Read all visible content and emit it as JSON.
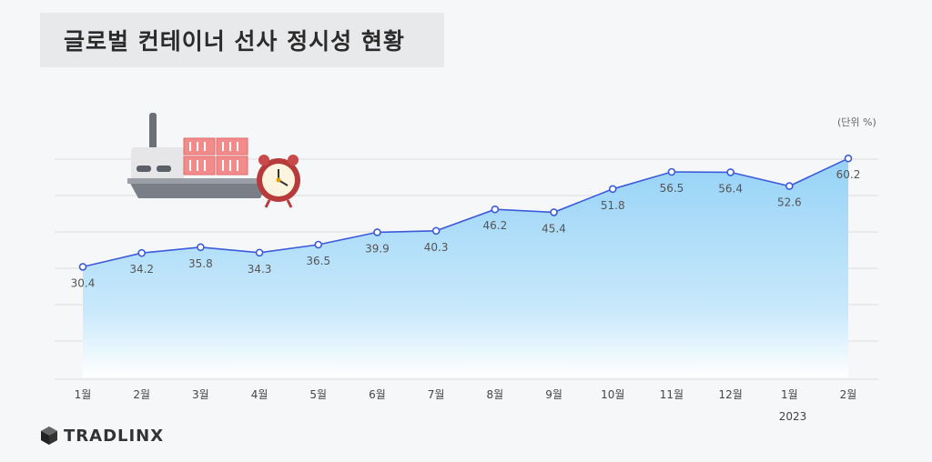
{
  "header": {
    "title": "글로벌 컨테이너 선사 정시성 현황",
    "unit": "(단위 %)"
  },
  "brand": {
    "name": "TRADLINX",
    "icon": "cube-logo-icon"
  },
  "illustration": {
    "icon": "container-ship-with-alarm-clock-icon"
  },
  "colors": {
    "line": "#3b5bdb",
    "fill_top": "#9fd6f7",
    "fill_bottom": "#ffffff",
    "grid": "#dddddd"
  },
  "chart_data": {
    "type": "area",
    "categories": [
      "1월",
      "2월",
      "3월",
      "4월",
      "5월",
      "6월",
      "7월",
      "8월",
      "9월",
      "10월",
      "11월",
      "12월",
      "1월",
      "2월"
    ],
    "values": [
      30.4,
      34.2,
      35.8,
      34.3,
      36.5,
      39.9,
      40.3,
      46.2,
      45.4,
      51.8,
      56.5,
      56.4,
      52.6,
      60.2
    ],
    "year_label": "2023",
    "ylim": [
      0,
      70
    ],
    "grid": true,
    "legend": "none",
    "data_labels": true
  }
}
